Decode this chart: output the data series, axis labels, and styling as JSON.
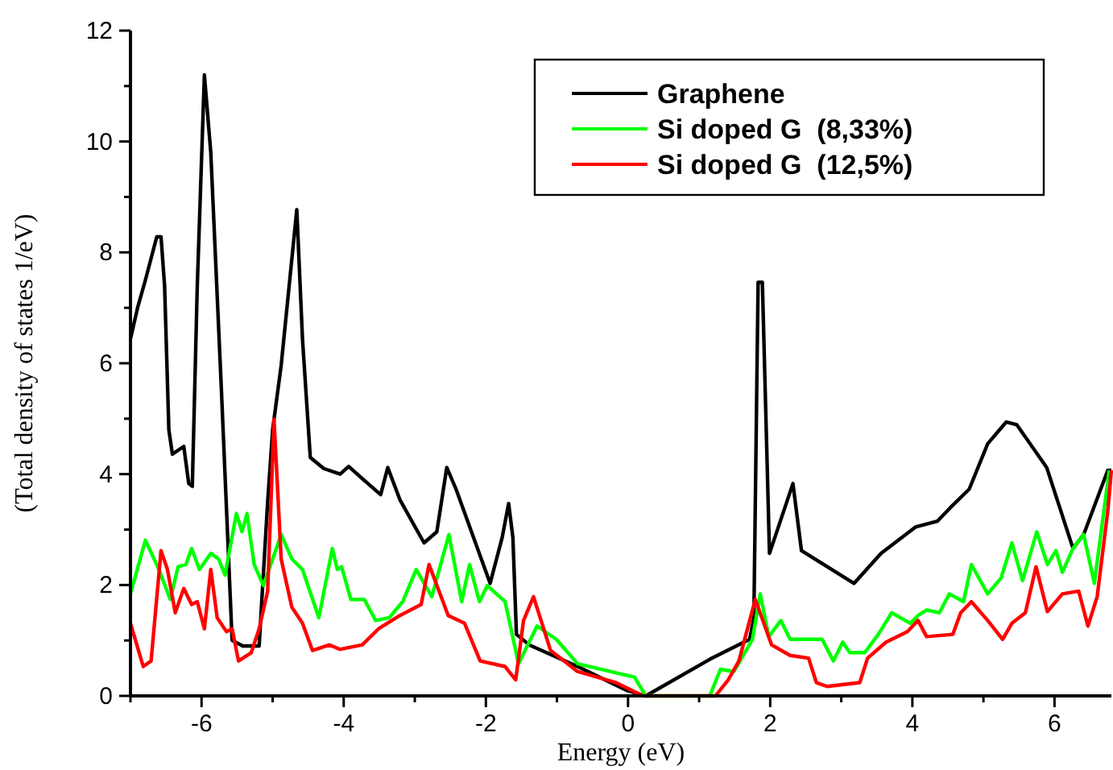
{
  "chart_data": {
    "type": "line",
    "xlabel": "Energy (eV)",
    "ylabel": "(Total density of states 1/eV)",
    "xlim": [
      -7,
      6.8
    ],
    "ylim": [
      0,
      12
    ],
    "xticks": [
      {
        "value": -7,
        "label": null
      },
      -6,
      {
        "value": -5,
        "label": null
      },
      -4,
      {
        "value": -3,
        "label": null
      },
      -2,
      {
        "value": -1,
        "label": null
      },
      0,
      {
        "value": 1,
        "label": null
      },
      2,
      {
        "value": 3,
        "label": null
      },
      4,
      {
        "value": 5,
        "label": null
      },
      6
    ],
    "yticks": [
      0,
      {
        "value": 1,
        "label": null
      },
      2,
      {
        "value": 3,
        "label": null
      },
      4,
      {
        "value": 5,
        "label": null
      },
      6,
      {
        "value": 7,
        "label": null
      },
      8,
      {
        "value": 9,
        "label": null
      },
      10,
      {
        "value": 11,
        "label": null
      },
      12
    ],
    "grid": false,
    "legend": "top right",
    "line_style": "solid",
    "marker": "none",
    "series": [
      {
        "name": "Graphene",
        "color": "#000000",
        "x": [
          -7,
          -6.9,
          -6.79,
          -6.63,
          -6.57,
          -6.52,
          -6.46,
          -6.41,
          -6.25,
          -6.18,
          -6.13,
          -6.06,
          -5.96,
          -5.87,
          -5.72,
          -5.57,
          -5.42,
          -5.19,
          -5.07,
          -5,
          -4.88,
          -4.66,
          -4.58,
          -4.47,
          -4.28,
          -4.05,
          -3.93,
          -3.74,
          -3.48,
          -3.38,
          -3.21,
          -2.87,
          -2.69,
          -2.55,
          -2.42,
          -1.94,
          -1.77,
          -1.68,
          -1.62,
          -1.57,
          -1.39,
          -0.71,
          -0.02,
          0.25,
          1.15,
          1.71,
          1.77,
          1.83,
          1.89,
          1.99,
          2.32,
          2.44,
          3.18,
          3.56,
          4.05,
          4.35,
          4.53,
          4.8,
          5.06,
          5.32,
          5.47,
          5.89,
          6.26,
          6.41,
          6.75,
          6.8
        ],
        "values": [
          6.44,
          7,
          7.5,
          8.28,
          8.28,
          7.4,
          4.8,
          4.36,
          4.5,
          3.83,
          3.78,
          7.4,
          11.2,
          9.8,
          5.5,
          1,
          0.9,
          0.9,
          3.5,
          4.8,
          5.96,
          8.77,
          6.44,
          4.3,
          4.1,
          4,
          4.14,
          3.92,
          3.63,
          4.12,
          3.54,
          2.76,
          2.96,
          4.12,
          3.73,
          2.03,
          2.86,
          3.47,
          2.86,
          1.11,
          0.92,
          0.53,
          0.1,
          0,
          0.66,
          1.02,
          1.4,
          7.46,
          7.46,
          2.57,
          3.83,
          2.62,
          2.03,
          2.57,
          3.05,
          3.15,
          3.39,
          3.73,
          4.55,
          4.94,
          4.89,
          4.12,
          2.66,
          2.91,
          4.07,
          4.07
        ]
      },
      {
        "name": "Si doped G  (8,33%)",
        "color": "#00ff00",
        "x": [
          -7,
          -6.79,
          -6.6,
          -6.44,
          -6.33,
          -6.22,
          -6.14,
          -6.03,
          -5.87,
          -5.76,
          -5.67,
          -5.51,
          -5.43,
          -5.36,
          -5.26,
          -5.13,
          -5,
          -4.88,
          -4.73,
          -4.58,
          -4.35,
          -4.16,
          -4.09,
          -4.03,
          -3.9,
          -3.71,
          -3.55,
          -3.36,
          -3.17,
          -2.98,
          -2.76,
          -2.52,
          -2.34,
          -2.23,
          -2.09,
          -1.98,
          -1.73,
          -1.54,
          -1.28,
          -1.01,
          -0.71,
          -0.25,
          0.09,
          0.25,
          1.15,
          1.3,
          1.49,
          1.75,
          1.86,
          1.98,
          2.15,
          2.28,
          2.73,
          2.89,
          3.02,
          3.12,
          3.33,
          3.52,
          3.71,
          3.97,
          4.08,
          4.2,
          4.38,
          4.52,
          4.72,
          4.83,
          5.06,
          5.25,
          5.4,
          5.55,
          5.75,
          5.9,
          6.02,
          6.11,
          6.26,
          6.41,
          6.56,
          6.77
        ],
        "values": [
          1.84,
          2.81,
          2.28,
          1.74,
          2.33,
          2.37,
          2.66,
          2.28,
          2.57,
          2.47,
          2.18,
          3.29,
          2.96,
          3.29,
          2.37,
          1.99,
          2.47,
          2.91,
          2.47,
          2.28,
          1.41,
          2.66,
          2.28,
          2.33,
          1.74,
          1.74,
          1.36,
          1.41,
          1.7,
          2.28,
          1.79,
          2.91,
          1.7,
          2.37,
          1.7,
          1.99,
          1.7,
          0.58,
          1.26,
          1.02,
          0.58,
          0.44,
          0.34,
          0,
          0,
          0.48,
          0.44,
          1.02,
          1.84,
          1.07,
          1.36,
          1.02,
          1.02,
          0.63,
          0.97,
          0.78,
          0.78,
          1.11,
          1.5,
          1.31,
          1.45,
          1.55,
          1.5,
          1.84,
          1.7,
          2.37,
          1.84,
          2.13,
          2.76,
          2.08,
          2.96,
          2.37,
          2.62,
          2.23,
          2.66,
          2.91,
          2.03,
          4.07
        ]
      },
      {
        "name": "Si doped G  (12,5%)",
        "color": "#ff0000",
        "x": [
          -7,
          -6.82,
          -6.71,
          -6.57,
          -6.48,
          -6.37,
          -6.25,
          -6.14,
          -6.06,
          -5.96,
          -5.87,
          -5.78,
          -5.65,
          -5.57,
          -5.48,
          -5.3,
          -5.19,
          -5.07,
          -4.98,
          -4.88,
          -4.73,
          -4.58,
          -4.44,
          -4.2,
          -4.05,
          -3.74,
          -3.51,
          -3.21,
          -2.91,
          -2.8,
          -2.53,
          -2.3,
          -2.08,
          -1.73,
          -1.58,
          -1.47,
          -1.33,
          -1.09,
          -0.71,
          -0.17,
          0.21,
          1.23,
          1.41,
          1.56,
          1.79,
          2.02,
          2.28,
          2.54,
          2.65,
          2.8,
          3.26,
          3.37,
          3.63,
          3.93,
          4.08,
          4.2,
          4.57,
          4.68,
          4.83,
          5.06,
          5.27,
          5.4,
          5.59,
          5.74,
          5.9,
          6.11,
          6.34,
          6.47,
          6.6,
          6.75,
          6.8
        ],
        "values": [
          1.31,
          0.53,
          0.63,
          2.62,
          2.28,
          1.5,
          1.94,
          1.65,
          1.7,
          1.21,
          2.28,
          1.41,
          1.16,
          1.21,
          0.63,
          0.78,
          1.21,
          1.89,
          4.99,
          2.47,
          1.6,
          1.31,
          0.82,
          0.92,
          0.84,
          0.92,
          1.21,
          1.45,
          1.65,
          2.37,
          1.45,
          1.31,
          0.63,
          0.53,
          0.29,
          1.36,
          1.79,
          0.82,
          0.44,
          0.24,
          0,
          0,
          0.29,
          0.63,
          1.74,
          0.92,
          0.73,
          0.68,
          0.24,
          0.17,
          0.24,
          0.68,
          0.97,
          1.16,
          1.36,
          1.07,
          1.11,
          1.5,
          1.7,
          1.36,
          1.02,
          1.31,
          1.5,
          2.33,
          1.52,
          1.84,
          1.89,
          1.26,
          1.79,
          3.34,
          4.07
        ]
      }
    ]
  }
}
